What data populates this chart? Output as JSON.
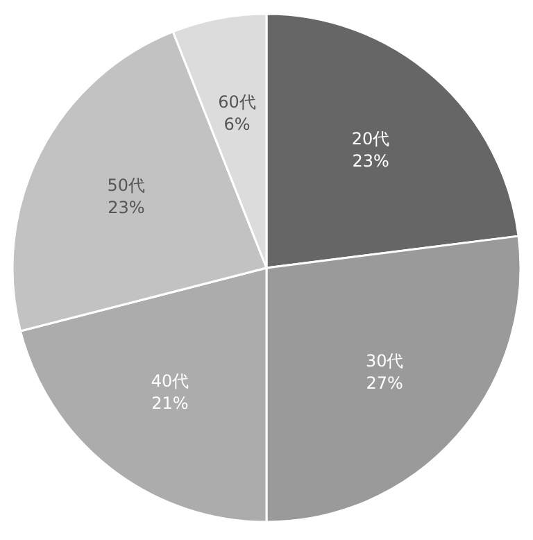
{
  "chart_data": {
    "type": "pie",
    "categories": [
      "20代",
      "30代",
      "40代",
      "50代",
      "60代"
    ],
    "values": [
      23,
      27,
      21,
      23,
      6
    ],
    "value_labels": [
      "23%",
      "27%",
      "21%",
      "23%",
      "6%"
    ],
    "colors": [
      "#666666",
      "#9a9a9a",
      "#acacac",
      "#c2c2c2",
      "#dcdcdc"
    ]
  }
}
